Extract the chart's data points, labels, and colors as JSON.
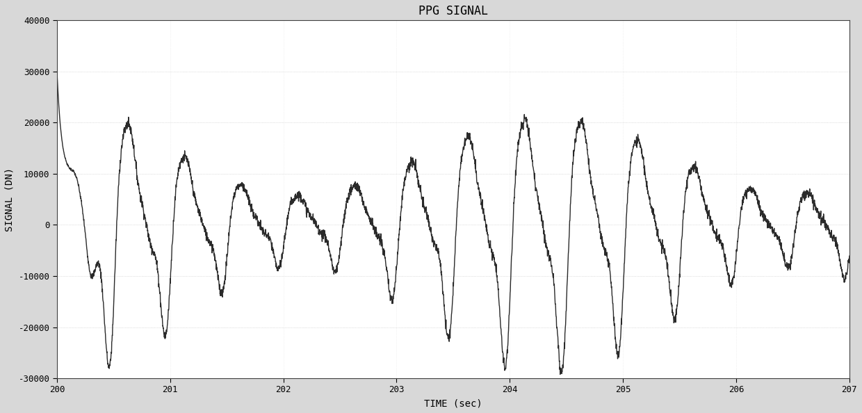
{
  "title": "PPG SIGNAL",
  "xlabel": "TIME (sec)",
  "ylabel": "SIGNAL (DN)",
  "xlim": [
    200,
    207
  ],
  "ylim": [
    -30000,
    40000
  ],
  "xticks": [
    200,
    201,
    202,
    203,
    204,
    205,
    206,
    207
  ],
  "yticks": [
    -30000,
    -20000,
    -10000,
    0,
    10000,
    20000,
    30000,
    40000
  ],
  "line_color": "#2a2a2a",
  "line_width": 1.0,
  "background_color": "#d8d8d8",
  "plot_bg_color": "#ffffff",
  "title_fontsize": 12,
  "label_fontsize": 10,
  "tick_fontsize": 9,
  "seed": 7,
  "fs": 500,
  "t_start": 200,
  "t_end": 207
}
